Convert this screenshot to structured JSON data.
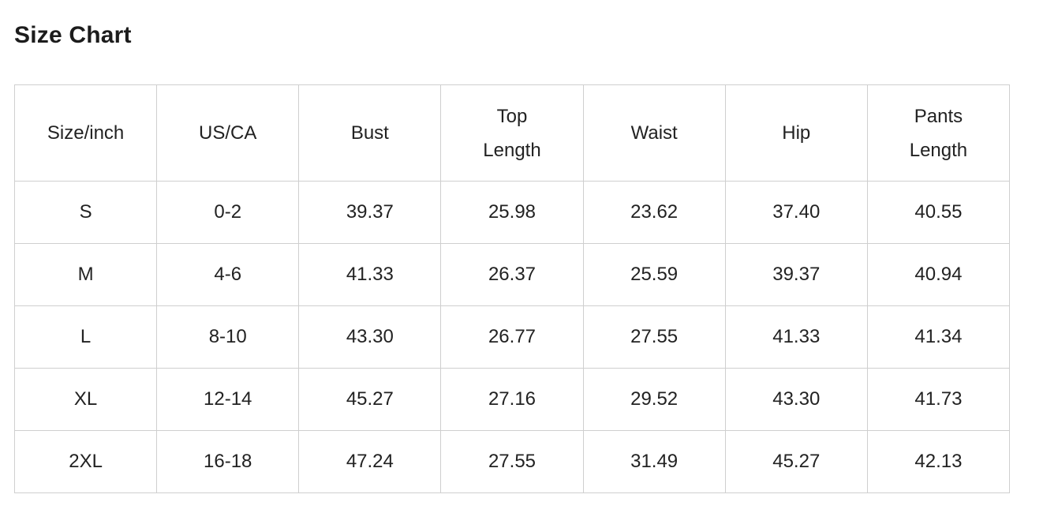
{
  "page": {
    "title": "Size Chart"
  },
  "colors": {
    "border": "#cfcfcf",
    "text": "#222222",
    "title": "#1c1c1c",
    "background": "#ffffff"
  },
  "table": {
    "columns": [
      "Size/inch",
      "US/CA",
      "Bust",
      "Top\nLength",
      "Waist",
      "Hip",
      "Pants\nLength"
    ],
    "rows": [
      [
        "S",
        "0-2",
        "39.37",
        "25.98",
        "23.62",
        "37.40",
        "40.55"
      ],
      [
        "M",
        "4-6",
        "41.33",
        "26.37",
        "25.59",
        "39.37",
        "40.94"
      ],
      [
        "L",
        "8-10",
        "43.30",
        "26.77",
        "27.55",
        "41.33",
        "41.34"
      ],
      [
        "XL",
        "12-14",
        "45.27",
        "27.16",
        "29.52",
        "43.30",
        "41.73"
      ],
      [
        "2XL",
        "16-18",
        "47.24",
        "27.55",
        "31.49",
        "45.27",
        "42.13"
      ]
    ]
  },
  "chart_data": {
    "type": "table",
    "title": "Size Chart",
    "columns": [
      "Size/inch",
      "US/CA",
      "Bust",
      "Top Length",
      "Waist",
      "Hip",
      "Pants Length"
    ],
    "units": "inch",
    "rows": [
      {
        "size": "S",
        "us_ca": "0-2",
        "bust": 39.37,
        "top_length": 25.98,
        "waist": 23.62,
        "hip": 37.4,
        "pants_length": 40.55
      },
      {
        "size": "M",
        "us_ca": "4-6",
        "bust": 41.33,
        "top_length": 26.37,
        "waist": 25.59,
        "hip": 39.37,
        "pants_length": 40.94
      },
      {
        "size": "L",
        "us_ca": "8-10",
        "bust": 43.3,
        "top_length": 26.77,
        "waist": 27.55,
        "hip": 41.33,
        "pants_length": 41.34
      },
      {
        "size": "XL",
        "us_ca": "12-14",
        "bust": 45.27,
        "top_length": 27.16,
        "waist": 29.52,
        "hip": 43.3,
        "pants_length": 41.73
      },
      {
        "size": "2XL",
        "us_ca": "16-18",
        "bust": 47.24,
        "top_length": 27.55,
        "waist": 31.49,
        "hip": 45.27,
        "pants_length": 42.13
      }
    ]
  }
}
